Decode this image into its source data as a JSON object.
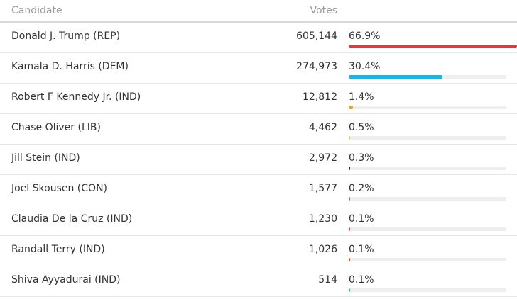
{
  "header": {
    "candidate_label": "Candidate",
    "votes_label": "Votes"
  },
  "rows": [
    {
      "name": "Donald J. Trump (REP)",
      "votes": "605,144",
      "pct": "66.9%",
      "share": 1.0,
      "color": "#e03a3e",
      "wide": true
    },
    {
      "name": "Kamala D. Harris (DEM)",
      "votes": "274,973",
      "pct": "30.4%",
      "share": 0.595,
      "color": "#1fb3e0"
    },
    {
      "name": "Robert F Kennedy Jr. (IND)",
      "votes": "12,812",
      "pct": "1.4%",
      "share": 0.027,
      "color": "#e8a317"
    },
    {
      "name": "Chase Oliver (LIB)",
      "votes": "4,462",
      "pct": "0.5%",
      "share": 0.01,
      "color": "#f2c94c"
    },
    {
      "name": "Jill Stein (IND)",
      "votes": "2,972",
      "pct": "0.3%",
      "share": 0.006,
      "color": "#333333"
    },
    {
      "name": "Joel Skousen (CON)",
      "votes": "1,577",
      "pct": "0.2%",
      "share": 0.004,
      "color": "#9b59b6"
    },
    {
      "name": "Claudia De la Cruz (IND)",
      "votes": "1,230",
      "pct": "0.1%",
      "share": 0.002,
      "color": "#e84a7a"
    },
    {
      "name": "Randall Terry (IND)",
      "votes": "1,026",
      "pct": "0.1%",
      "share": 0.002,
      "color": "#d35400"
    },
    {
      "name": "Shiva Ayyadurai (IND)",
      "votes": "514",
      "pct": "0.1%",
      "share": 0.001,
      "color": "#2ecc71"
    }
  ]
}
